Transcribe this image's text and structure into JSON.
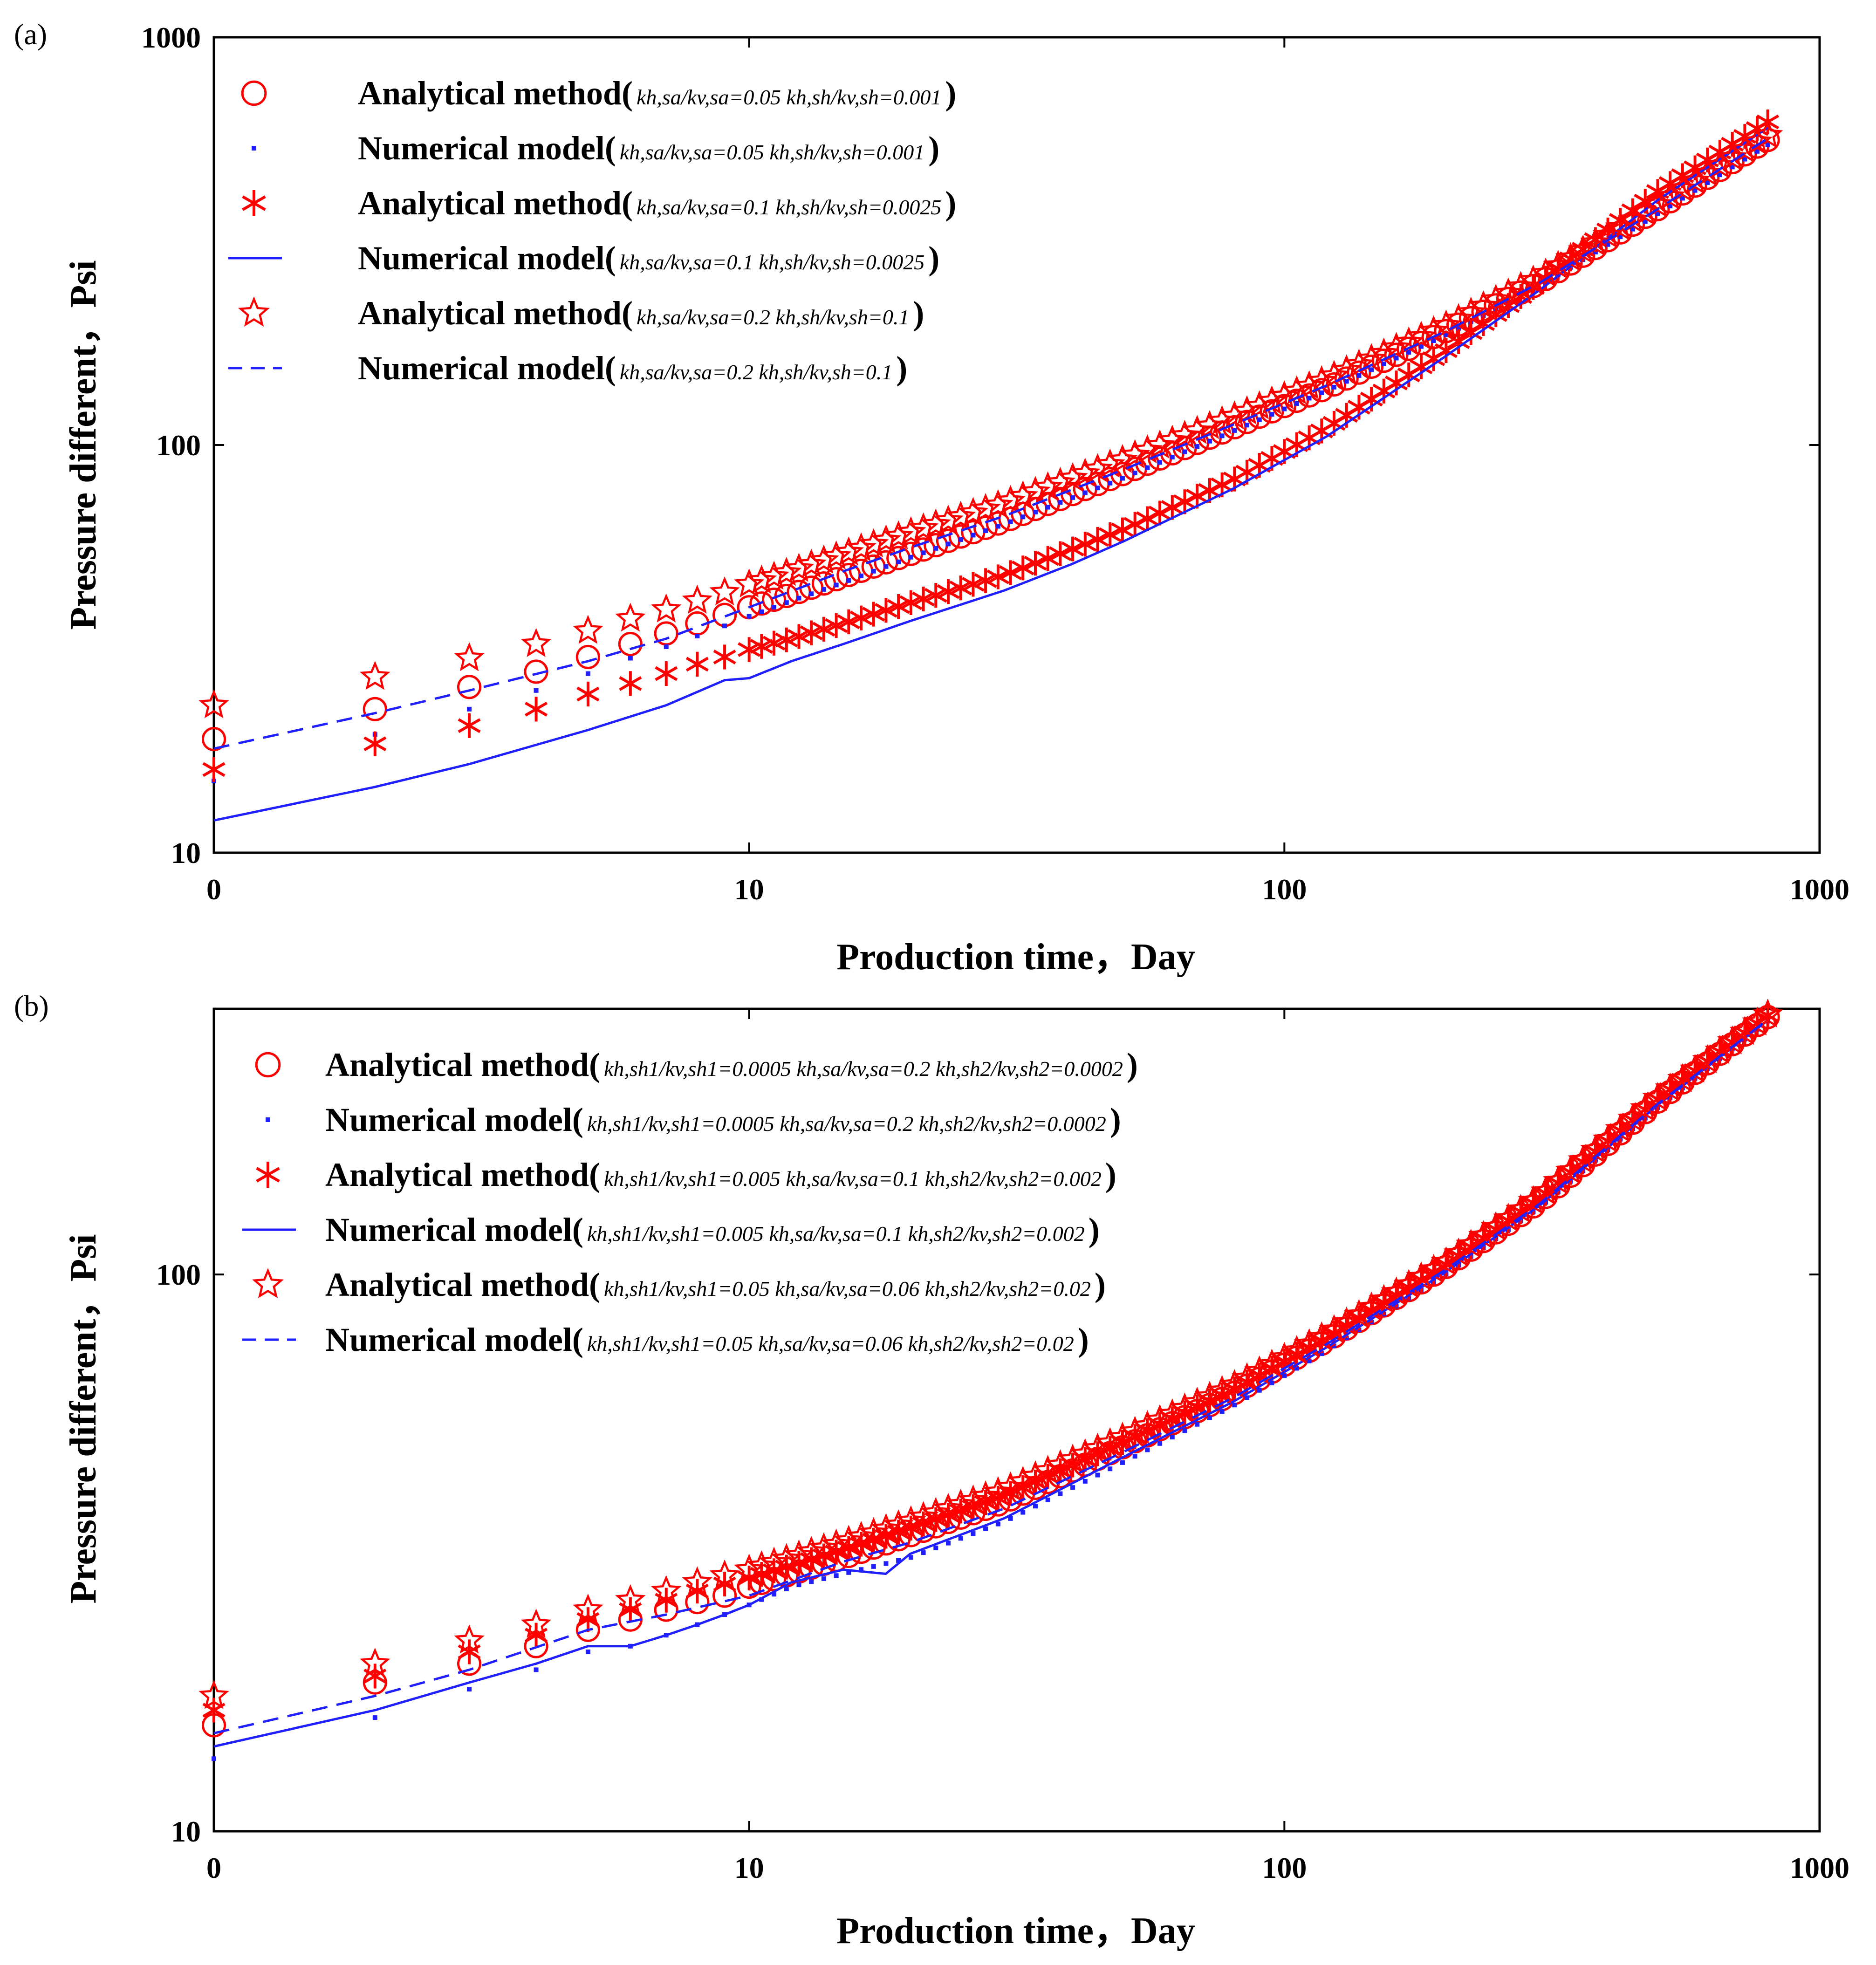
{
  "chart_data": [
    {
      "id": "a",
      "type": "line",
      "panel_label": "(a)",
      "xlabel": "Production time，Day",
      "ylabel": "Pressure different，Psi",
      "xscale": "log",
      "yscale": "log",
      "xlim": [
        1,
        1000
      ],
      "ylim": [
        10,
        1000
      ],
      "xticks": [
        {
          "value": 1,
          "label": "0"
        },
        {
          "value": 10,
          "label": "10"
        },
        {
          "value": 100,
          "label": "100"
        },
        {
          "value": 1000,
          "label": "1000"
        }
      ],
      "yticks": [
        {
          "value": 10,
          "label": "10"
        },
        {
          "value": 100,
          "label": "100"
        },
        {
          "value": 1000,
          "label": "1000"
        }
      ],
      "legend_position": "top-left",
      "series": [
        {
          "key": "a1",
          "name": "Analytical method",
          "params": "kh,sa/kv,sa=0.05  kh,sh/kv,sh=0.001",
          "style": "circle",
          "color": "#ff0000",
          "x": [
            1,
            2,
            3,
            4,
            5,
            6,
            7,
            8,
            9,
            10,
            12,
            15,
            20,
            30,
            50,
            80,
            120,
            200,
            300,
            500,
            800
          ],
          "y": [
            19,
            22.5,
            25.5,
            27.8,
            30.2,
            32.5,
            34.5,
            36.5,
            38.3,
            40,
            43,
            47.5,
            54,
            65,
            85,
            110,
            138,
            190,
            250,
            380,
            560
          ]
        },
        {
          "key": "a2",
          "name": "Numerical model",
          "params": "kh,sa/kv,sa=0.05  kh,sh/kv,sh=0.001",
          "style": "dot",
          "color": "#1f1fff",
          "x": [
            1,
            2,
            3,
            4,
            5,
            6,
            7,
            8,
            9,
            10,
            12,
            15,
            20,
            30,
            50,
            80,
            120,
            200,
            300,
            500,
            800
          ],
          "y": [
            15,
            19.5,
            22.5,
            25,
            27.5,
            30,
            32,
            34,
            36,
            38,
            41.5,
            46,
            53,
            64,
            83,
            108,
            136,
            186,
            245,
            370,
            545
          ]
        },
        {
          "key": "a3",
          "name": "Analytical method",
          "params": "kh,sa/kv,sa=0.1  kh,sh/kv,sh=0.0025",
          "style": "asterisk",
          "color": "#ff0000",
          "x": [
            1,
            2,
            3,
            4,
            5,
            6,
            7,
            8,
            9,
            10,
            12,
            15,
            20,
            30,
            50,
            80,
            120,
            200,
            300,
            500,
            800
          ],
          "y": [
            16,
            18.5,
            20.5,
            22.5,
            24.5,
            26,
            27.5,
            29,
            30.2,
            31.5,
            33.5,
            36.5,
            41,
            48,
            62,
            82,
            110,
            170,
            250,
            420,
            620
          ]
        },
        {
          "key": "a4",
          "name": "Numerical model",
          "params": "kh,sa/kv,sa=0.1  kh,sh/kv,sh=0.0025",
          "style": "solid",
          "color": "#1f1fff",
          "x": [
            1,
            2,
            3,
            5,
            7,
            9,
            10,
            12,
            15,
            20,
            30,
            40,
            50,
            80,
            120,
            200,
            300,
            500,
            800
          ],
          "y": [
            12,
            14.5,
            16.5,
            20,
            23,
            26.5,
            26.8,
            29.5,
            32.5,
            37,
            44,
            51,
            58,
            78,
            105,
            165,
            240,
            400,
            600
          ]
        },
        {
          "key": "a5",
          "name": "Analytical method",
          "params": "kh,sa/kv,sa=0.2  kh,sh/kv,sh=0.1",
          "style": "star",
          "color": "#ff0000",
          "x": [
            1,
            2,
            3,
            4,
            5,
            6,
            7,
            8,
            9,
            10,
            12,
            15,
            20,
            30,
            50,
            80,
            120,
            200,
            300,
            500,
            800
          ],
          "y": [
            23,
            27,
            30,
            32.5,
            35,
            37.5,
            39.5,
            41.5,
            43.5,
            45.5,
            49,
            54,
            61,
            72,
            92,
            117,
            145,
            196,
            258,
            390,
            575
          ]
        },
        {
          "key": "a6",
          "name": "Numerical model",
          "params": "kh,sa/kv,sa=0.2  kh,sh/kv,sh=0.1",
          "style": "dashed",
          "color": "#1f1fff",
          "x": [
            1,
            2,
            3,
            5,
            7,
            10,
            15,
            20,
            30,
            50,
            80,
            120,
            200,
            300,
            500,
            800
          ],
          "y": [
            18,
            22,
            25,
            29.5,
            33.5,
            40,
            49,
            56,
            67,
            87,
            112,
            140,
            190,
            250,
            380,
            565
          ]
        }
      ]
    },
    {
      "id": "b",
      "type": "line",
      "panel_label": "(b)",
      "xlabel": "Production time，Day",
      "ylabel": "Pressure different，Psi",
      "xscale": "log",
      "yscale": "log",
      "xlim": [
        1,
        1000
      ],
      "ylim": [
        10,
        300
      ],
      "xticks": [
        {
          "value": 1,
          "label": "0"
        },
        {
          "value": 10,
          "label": "10"
        },
        {
          "value": 100,
          "label": "100"
        },
        {
          "value": 1000,
          "label": "1000"
        }
      ],
      "yticks": [
        {
          "value": 10,
          "label": "10"
        },
        {
          "value": 100,
          "label": "100"
        }
      ],
      "legend_position": "top-left",
      "series": [
        {
          "key": "b1",
          "name": "Analytical method",
          "params": "kh,sh1/kv,sh1=0.0005  kh,sa/kv,sa=0.2  kh,sh2/kv,sh2=0.0002",
          "style": "circle",
          "color": "#ff0000",
          "x": [
            1,
            2,
            3,
            4,
            5,
            6,
            7,
            8,
            9,
            10,
            12,
            15,
            20,
            30,
            50,
            80,
            120,
            200,
            300,
            500,
            800
          ],
          "y": [
            15.5,
            18.5,
            20,
            21.5,
            23,
            24,
            25,
            25.8,
            26.5,
            27.5,
            29,
            31,
            34,
            39,
            49,
            61,
            76,
            103,
            135,
            205,
            290
          ]
        },
        {
          "key": "b2",
          "name": "Numerical model",
          "params": "kh,sh1/kv,sh1=0.0005  kh,sa/kv,sa=0.2  kh,sh2/kv,sh2=0.0002",
          "style": "dot",
          "color": "#1f1fff",
          "x": [
            1,
            2,
            3,
            4,
            5,
            6,
            7,
            8,
            9,
            10,
            12,
            15,
            20,
            30,
            50,
            80,
            120,
            200,
            300,
            500,
            800
          ],
          "y": [
            13.5,
            16,
            18,
            19.5,
            21,
            21.5,
            22.5,
            23.5,
            24.5,
            25.5,
            27.5,
            29,
            31,
            36,
            46,
            58,
            73,
            100,
            132,
            200,
            285
          ]
        },
        {
          "key": "b3",
          "name": "Analytical method",
          "params": "kh,sh1/kv,sh1=0.005  kh,sa/kv,sa=0.1  kh,sh2/kv,sh2=0.002",
          "style": "asterisk",
          "color": "#ff0000",
          "x": [
            1,
            2,
            3,
            4,
            5,
            6,
            7,
            8,
            9,
            10,
            12,
            15,
            20,
            30,
            50,
            80,
            120,
            200,
            300,
            500,
            800
          ],
          "y": [
            16.5,
            19,
            21,
            22.5,
            24,
            25,
            26,
            27,
            27.8,
            28.5,
            30,
            32,
            35,
            40,
            50,
            62,
            77,
            104,
            137,
            207,
            292
          ]
        },
        {
          "key": "b4",
          "name": "Numerical model",
          "params": "kh,sh1/kv,sh1=0.005  kh,sa/kv,sa=0.1  kh,sh2/kv,sh2=0.002",
          "style": "solid",
          "color": "#1f1fff",
          "x": [
            1,
            2,
            3,
            4,
            5,
            6,
            7,
            8,
            9,
            10,
            12,
            15,
            18,
            20,
            30,
            50,
            80,
            120,
            200,
            300,
            500,
            800
          ],
          "y": [
            14.2,
            16.5,
            18.5,
            20,
            21.5,
            21.5,
            22.5,
            23.5,
            24.5,
            25.5,
            28,
            29.5,
            29,
            31.5,
            36.5,
            47,
            59,
            74,
            101,
            133,
            202,
            286
          ]
        },
        {
          "key": "b5",
          "name": "Analytical method",
          "params": "kh,sh1/kv,sh1=0.05  kh,sa/kv,sa=0.06  kh,sh2/kv,sh2=0.02",
          "style": "star",
          "color": "#ff0000",
          "x": [
            1,
            2,
            3,
            4,
            5,
            6,
            7,
            8,
            9,
            10,
            12,
            15,
            20,
            30,
            50,
            80,
            120,
            200,
            300,
            500,
            800
          ],
          "y": [
            17.5,
            20,
            22,
            23.5,
            25,
            26,
            27,
            28,
            28.8,
            29.5,
            31,
            33,
            36,
            41,
            51,
            63,
            78,
            105,
            138,
            208,
            293
          ]
        },
        {
          "key": "b6",
          "name": "Numerical model",
          "params": "kh,sh1/kv,sh1=0.05  kh,sa/kv,sa=0.06  kh,sh2/kv,sh2=0.02",
          "style": "dashed",
          "color": "#1f1fff",
          "x": [
            1,
            2,
            3,
            5,
            7,
            10,
            15,
            20,
            30,
            50,
            80,
            120,
            200,
            300,
            500,
            800
          ],
          "y": [
            15,
            17.5,
            19.5,
            23,
            24.5,
            26.5,
            30.5,
            33,
            38,
            48,
            60,
            75,
            102,
            134,
            203,
            287
          ]
        }
      ]
    }
  ]
}
